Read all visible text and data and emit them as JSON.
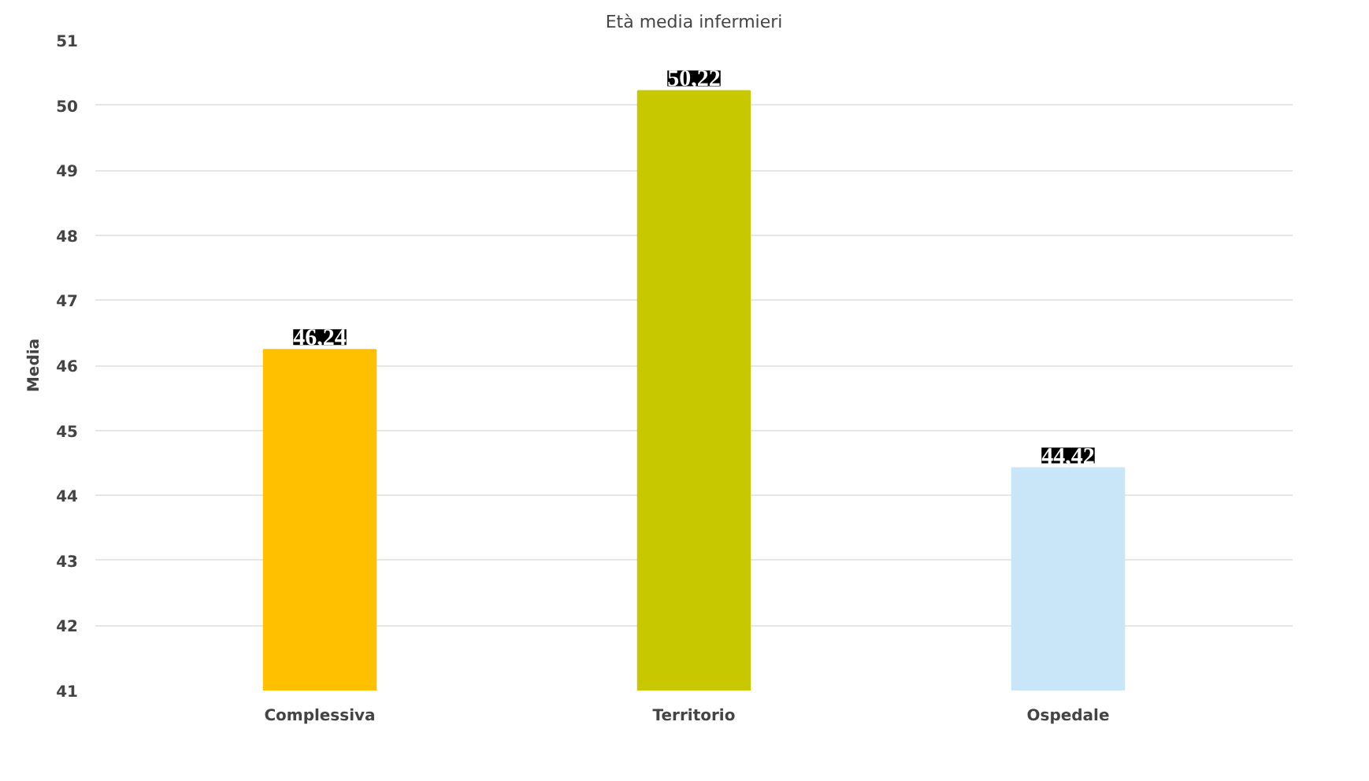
{
  "chart_data": {
    "type": "bar",
    "title": "Età media infermieri",
    "ylabel": "Media",
    "categories": [
      "Complessiva",
      "Territorio",
      "Ospedale"
    ],
    "values": [
      46.24,
      50.22,
      44.42
    ],
    "colors": [
      "#ffc000",
      "#c8c800",
      "#c9e6f8"
    ],
    "value_labels": [
      "46,24",
      "50,22",
      "44,42"
    ],
    "ylim": [
      41,
      51
    ],
    "yticks": [
      41,
      42,
      43,
      44,
      45,
      46,
      47,
      48,
      49,
      50,
      51
    ],
    "grid": "y"
  }
}
